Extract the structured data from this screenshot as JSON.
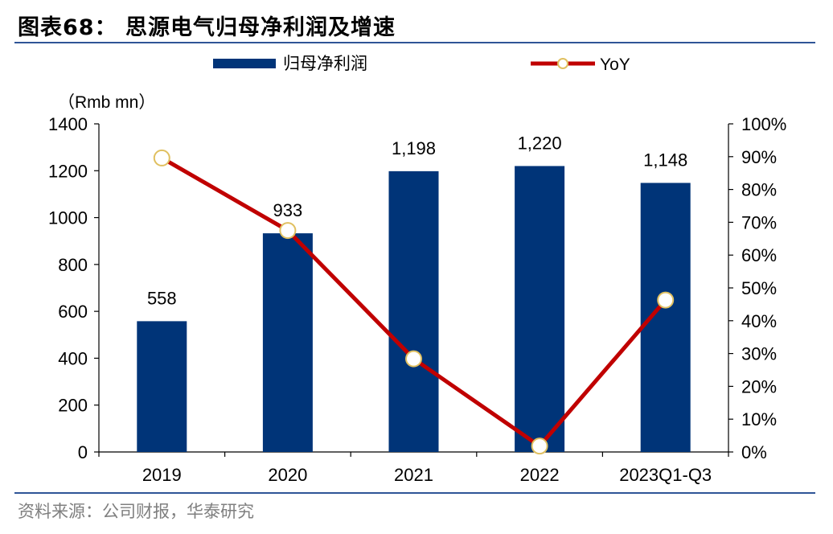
{
  "figure": {
    "title": "图表68： 思源电气归母净利润及增速",
    "source": "资料来源：公司财报，华泰研究"
  },
  "colors": {
    "bar": "#003478",
    "line": "#c00000",
    "marker_fill": "#ffffff",
    "marker_stroke": "#e0c060",
    "rule": "#2f5597"
  },
  "chart_data": {
    "type": "bar",
    "title": "",
    "categories": [
      "2019",
      "2020",
      "2021",
      "2022",
      "2023Q1-Q3"
    ],
    "series": [
      {
        "name": "归母净利润",
        "type": "bar",
        "axis": "left",
        "values": [
          558,
          933,
          1198,
          1220,
          1148
        ],
        "data_labels": [
          "558",
          "933",
          "1,198",
          "1,220",
          "1,148"
        ]
      },
      {
        "name": "YoY",
        "type": "line",
        "axis": "right",
        "values": [
          0.896,
          0.675,
          0.284,
          0.018,
          0.463
        ]
      }
    ],
    "y_left": {
      "label": "（Rmb mn）",
      "range": [
        0,
        1400
      ],
      "ticks": [
        0,
        200,
        400,
        600,
        800,
        1000,
        1200,
        1400
      ],
      "tick_labels": [
        "0",
        "200",
        "400",
        "600",
        "800",
        "1000",
        "1200",
        "1400"
      ]
    },
    "y_right": {
      "range": [
        0,
        1
      ],
      "ticks": [
        0,
        0.1,
        0.2,
        0.3,
        0.4,
        0.5,
        0.6,
        0.7,
        0.8,
        0.9,
        1.0
      ],
      "tick_labels": [
        "0%",
        "10%",
        "20%",
        "30%",
        "40%",
        "50%",
        "60%",
        "70%",
        "80%",
        "90%",
        "100%"
      ]
    },
    "legend": {
      "position": "top",
      "entries": [
        "归母净利润",
        "YoY"
      ]
    },
    "grid": false
  }
}
